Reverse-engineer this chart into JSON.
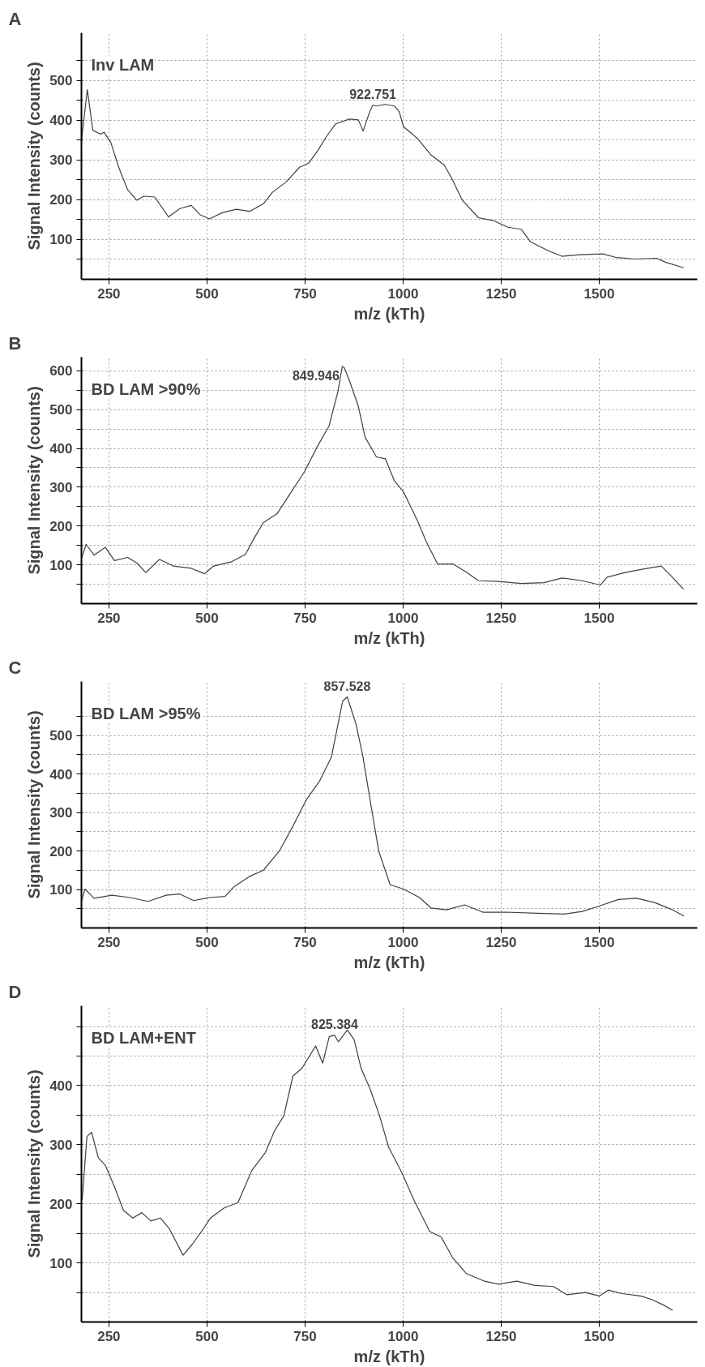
{
  "chart_data": [
    {
      "type": "line",
      "title": "A",
      "xlabel": "m/z (kTh)",
      "ylabel": "Signal Intensity (counts)",
      "xlim": [
        180,
        1750
      ],
      "ylim": [
        0,
        620
      ],
      "xticks": [
        250,
        500,
        750,
        1000,
        1250,
        1500
      ],
      "yticks": [
        {
          "value": 50,
          "label": null
        },
        100,
        {
          "value": 150,
          "label": null
        },
        200,
        {
          "value": 250,
          "label": null
        },
        300,
        {
          "value": 350,
          "label": null
        },
        400,
        {
          "value": 450,
          "label": null
        },
        500,
        {
          "value": 550,
          "label": null
        }
      ],
      "grid": true,
      "x": [
        180,
        195,
        209,
        229,
        238,
        255,
        275,
        298,
        321,
        339,
        367,
        402,
        431,
        460,
        483,
        506,
        540,
        575,
        609,
        644,
        667,
        702,
        736,
        759,
        782,
        805,
        828,
        863,
        886,
        898,
        915,
        922.751,
        932,
        955,
        978,
        990,
        1001,
        1036,
        1071,
        1105,
        1123,
        1151,
        1192,
        1232,
        1267,
        1301,
        1324,
        1370,
        1405,
        1451,
        1509,
        1543,
        1589,
        1646,
        1669,
        1715
      ],
      "series": [
        {
          "color": "#404040",
          "values": [
            349,
            477,
            375,
            365,
            370,
            344,
            282,
            225,
            199,
            209,
            207,
            157,
            178,
            186,
            162,
            152,
            168,
            176,
            171,
            190,
            219,
            245,
            282,
            292,
            323,
            360,
            391,
            403,
            401,
            373,
            422,
            438,
            436,
            440,
            436,
            422,
            384,
            355,
            313,
            287,
            256,
            199,
            155,
            147,
            131,
            126,
            95,
            72,
            58,
            62,
            64,
            55,
            51,
            53,
            43,
            29
          ]
        }
      ],
      "annotations": [
        "Inv LAM",
        {
          "text": "922.751",
          "x": 922.751,
          "y": 438
        }
      ]
    },
    {
      "type": "line",
      "title": "B",
      "xlabel": "m/z (kTh)",
      "ylabel": "Signal Intensity (counts)",
      "xlim": [
        180,
        1750
      ],
      "ylim": [
        0,
        635
      ],
      "xticks": [
        250,
        500,
        750,
        1000,
        1250,
        1500
      ],
      "yticks": [
        {
          "value": 50,
          "label": null
        },
        100,
        {
          "value": 150,
          "label": null
        },
        200,
        {
          "value": 250,
          "label": null
        },
        300,
        {
          "value": 350,
          "label": null
        },
        400,
        {
          "value": 450,
          "label": null
        },
        500,
        {
          "value": 550,
          "label": null
        },
        600
      ],
      "grid": true,
      "x": [
        180,
        192,
        212,
        241,
        264,
        298,
        321,
        344,
        379,
        414,
        460,
        494,
        517,
        563,
        598,
        621,
        644,
        679,
        713,
        748,
        782,
        811,
        834,
        845,
        849.946,
        863,
        886,
        903,
        932,
        955,
        978,
        1001,
        1036,
        1059,
        1088,
        1128,
        1163,
        1192,
        1244,
        1301,
        1359,
        1405,
        1451,
        1503,
        1520,
        1566,
        1612,
        1658,
        1681,
        1715
      ],
      "series": [
        {
          "color": "#404040",
          "values": [
            116,
            153,
            125,
            145,
            111,
            119,
            105,
            80,
            114,
            97,
            91,
            77,
            97,
            108,
            127,
            170,
            209,
            232,
            285,
            339,
            406,
            457,
            547,
            611,
            608,
            575,
            508,
            429,
            378,
            373,
            316,
            288,
            215,
            160,
            102,
            102,
            80,
            59,
            57,
            52,
            54,
            66,
            60,
            48,
            68,
            80,
            89,
            97,
            74,
            37
          ]
        }
      ],
      "annotations": [
        "BD LAM >90%",
        {
          "text": "849.946",
          "x": 849.946,
          "y": 608
        }
      ]
    },
    {
      "type": "line",
      "title": "C",
      "xlabel": "m/z (kTh)",
      "ylabel": "Signal Intensity (counts)",
      "xlim": [
        180,
        1750
      ],
      "ylim": [
        0,
        640
      ],
      "xticks": [
        250,
        500,
        750,
        1000,
        1250,
        1500
      ],
      "yticks": [
        {
          "value": 50,
          "label": null
        },
        100,
        {
          "value": 150,
          "label": null
        },
        200,
        {
          "value": 250,
          "label": null
        },
        300,
        {
          "value": 350,
          "label": null
        },
        400,
        {
          "value": 450,
          "label": null
        },
        500,
        {
          "value": 550,
          "label": null
        }
      ],
      "grid": true,
      "x": [
        180,
        189,
        212,
        258,
        304,
        350,
        396,
        431,
        466,
        506,
        546,
        569,
        609,
        644,
        684,
        719,
        754,
        788,
        817,
        846,
        857.528,
        880,
        897,
        920,
        938,
        967,
        1001,
        1042,
        1071,
        1111,
        1157,
        1203,
        1261,
        1342,
        1411,
        1457,
        1503,
        1549,
        1595,
        1641,
        1687,
        1716
      ],
      "series": [
        {
          "color": "#404040",
          "values": [
            69,
            101,
            77,
            85,
            79,
            69,
            85,
            88,
            71,
            79,
            82,
            107,
            134,
            150,
            199,
            264,
            334,
            383,
            443,
            589,
            600,
            529,
            448,
            307,
            199,
            112,
            101,
            79,
            52,
            47,
            60,
            41,
            41,
            38,
            36,
            43,
            58,
            74,
            77,
            66,
            47,
            31
          ]
        }
      ],
      "annotations": [
        "BD LAM >95%",
        {
          "text": "857.528",
          "x": 857.528,
          "y": 600
        }
      ]
    },
    {
      "type": "line",
      "title": "D",
      "xlabel": "m/z (kTh)",
      "ylabel": "Signal Intensity (counts)",
      "xlim": [
        180,
        1750
      ],
      "ylim": [
        0,
        535
      ],
      "xticks": [
        250,
        500,
        750,
        1000,
        1250,
        1500
      ],
      "yticks": [
        {
          "value": 50,
          "label": null
        },
        100,
        {
          "value": 150,
          "label": null
        },
        200,
        {
          "value": 250,
          "label": null
        },
        300,
        {
          "value": 350,
          "label": null
        },
        400,
        {
          "value": 450,
          "label": null
        },
        {
          "value": 500,
          "label": null
        }
      ],
      "grid": true,
      "x": [
        182,
        194,
        206,
        223,
        241,
        264,
        287,
        311,
        334,
        357,
        381,
        404,
        439,
        462,
        486,
        509,
        544,
        579,
        614,
        649,
        672,
        696,
        719,
        742,
        777,
        795,
        812,
        825.384,
        835,
        858,
        875,
        893,
        916,
        940,
        963,
        998,
        1027,
        1068,
        1097,
        1126,
        1161,
        1208,
        1243,
        1290,
        1336,
        1383,
        1418,
        1465,
        1500,
        1523,
        1558,
        1605,
        1634,
        1663,
        1687
      ],
      "series": [
        {
          "color": "#404040",
          "values": [
            207,
            314,
            321,
            278,
            265,
            229,
            189,
            176,
            185,
            171,
            176,
            158,
            113,
            131,
            153,
            176,
            193,
            202,
            256,
            287,
            323,
            349,
            416,
            429,
            467,
            438,
            483,
            485,
            474,
            494,
            478,
            429,
            394,
            349,
            296,
            251,
            207,
            153,
            144,
            109,
            82,
            69,
            64,
            69,
            62,
            60,
            46,
            50,
            44,
            54,
            48,
            44,
            38,
            29,
            20
          ]
        }
      ],
      "annotations": [
        "BD LAM+ENT",
        {
          "text": "825.384",
          "x": 825.384,
          "y": 485
        }
      ]
    }
  ]
}
